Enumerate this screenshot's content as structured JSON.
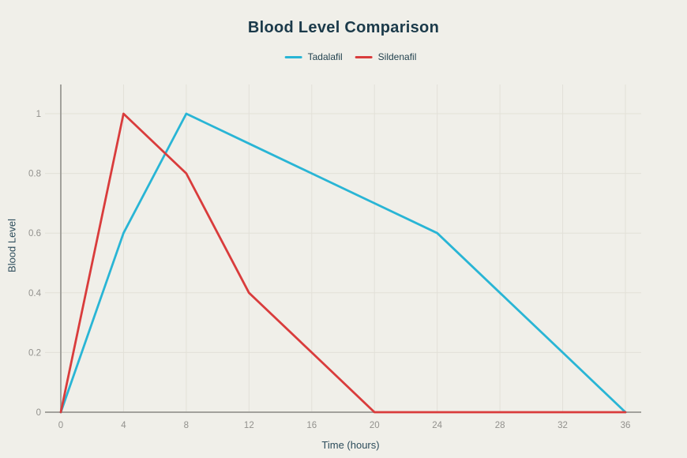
{
  "colors": {
    "background": "#f0efe9",
    "title_text": "#1b3a4a",
    "axis_title_text": "#2c4c5b",
    "legend_text": "#23424f",
    "tick_label_text": "#92918d",
    "axis_line": "#a2a19c",
    "grid_line": "#e2e0d8"
  },
  "chart_data": {
    "type": "line",
    "title": "Blood Level Comparison",
    "xlabel": "Time (hours)",
    "ylabel": "Blood Level",
    "x": [
      0,
      4,
      8,
      12,
      16,
      20,
      24,
      28,
      32,
      36
    ],
    "xticks": [
      "0",
      "4",
      "8",
      "12",
      "16",
      "20",
      "24",
      "28",
      "32",
      "36"
    ],
    "yticks": [
      "0",
      "0.2",
      "0.4",
      "0.6",
      "0.8",
      "1"
    ],
    "ytick_values": [
      0,
      0.2,
      0.4,
      0.6,
      0.8,
      1
    ],
    "xlim": [
      0,
      36
    ],
    "ylim": [
      0,
      1
    ],
    "grid": true,
    "legend_position": "top-center",
    "series": [
      {
        "name": "Tadalafil",
        "color": "#29b5d5",
        "values": [
          0,
          0.6,
          1,
          0.9,
          0.8,
          0.7,
          0.6,
          0.4,
          0.2,
          0
        ]
      },
      {
        "name": "Sildenafil",
        "color": "#d93c3c",
        "values": [
          0,
          1,
          0.8,
          0.4,
          0.2,
          0,
          0,
          0,
          0,
          0
        ]
      }
    ]
  }
}
